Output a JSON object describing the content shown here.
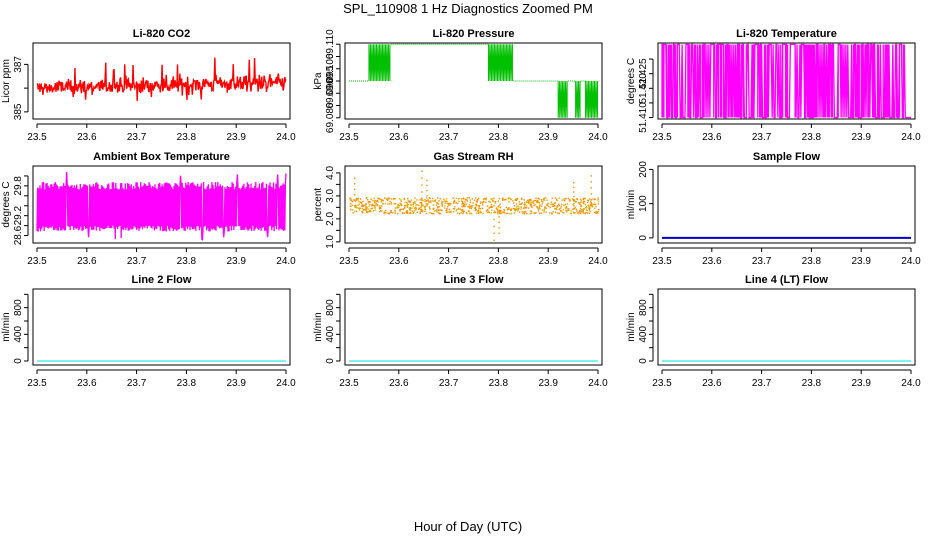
{
  "figure": {
    "title": "SPL_110908  1 Hz Diagnostics Zoomed PM",
    "xlabel": "Hour of Day (UTC)"
  },
  "chart_data": [
    {
      "id": "co2",
      "type": "line",
      "title": "Li-820 CO2",
      "ylabel": "Licor ppm",
      "xlim": [
        23.5,
        24.0
      ],
      "ylim": [
        384.7,
        387.9
      ],
      "xticks": [
        "23.5",
        "23.6",
        "23.7",
        "23.8",
        "23.9",
        "24.0"
      ],
      "yticks": [
        385,
        386,
        387
      ],
      "ytick_labels": [
        "385",
        "",
        "387"
      ],
      "color": "#ff0000",
      "series": [
        {
          "name": "CO2",
          "x_range": [
            23.5,
            24.0
          ],
          "pattern": "noise",
          "center": 386.0,
          "spread": 0.35,
          "range": [
            385.0,
            387.6
          ],
          "trend": 0.25
        }
      ]
    },
    {
      "id": "pressure",
      "type": "line",
      "title": "Li-820 Pressure",
      "ylabel": "kPa",
      "xlim": [
        23.5,
        24.0
      ],
      "ylim": [
        69.0795,
        69.1105
      ],
      "xticks": [
        "23.5",
        "23.6",
        "23.7",
        "23.8",
        "23.9",
        "24.0"
      ],
      "yticks": [
        69.08,
        69.085,
        69.09,
        69.095,
        69.1,
        69.105,
        69.11
      ],
      "ytick_labels": [
        "69.080",
        "",
        "69.090",
        "69.095",
        "69.100",
        "",
        "69.110"
      ],
      "color": "#00c000",
      "series": [
        {
          "name": "Pressure",
          "pattern": "steps",
          "segments": [
            {
              "x0": 23.5,
              "x1": 23.54,
              "mode": "flat",
              "y": 69.095
            },
            {
              "x0": 23.54,
              "x1": 23.585,
              "mode": "toggle",
              "ya": 69.095,
              "yb": 69.11
            },
            {
              "x0": 23.585,
              "x1": 23.78,
              "mode": "flat",
              "y": 69.11
            },
            {
              "x0": 23.78,
              "x1": 23.83,
              "mode": "toggle",
              "ya": 69.11,
              "yb": 69.095
            },
            {
              "x0": 23.83,
              "x1": 23.92,
              "mode": "flat",
              "y": 69.095
            },
            {
              "x0": 23.92,
              "x1": 23.94,
              "mode": "toggle",
              "ya": 69.095,
              "yb": 69.08
            },
            {
              "x0": 23.94,
              "x1": 23.955,
              "mode": "flat",
              "y": 69.095
            },
            {
              "x0": 23.955,
              "x1": 23.965,
              "mode": "toggle",
              "ya": 69.095,
              "yb": 69.08
            },
            {
              "x0": 23.965,
              "x1": 23.975,
              "mode": "flat",
              "y": 69.095
            },
            {
              "x0": 23.975,
              "x1": 24.0,
              "mode": "toggle",
              "ya": 69.095,
              "yb": 69.08
            }
          ]
        }
      ]
    },
    {
      "id": "licor_temp",
      "type": "line",
      "title": "Li-820 Temperature",
      "ylabel": "degrees C",
      "xlim": [
        23.5,
        24.0
      ],
      "ylim": [
        51.4095,
        51.4355
      ],
      "xticks": [
        "23.5",
        "23.6",
        "23.7",
        "23.8",
        "23.9",
        "24.0"
      ],
      "yticks": [
        51.41,
        51.415,
        51.42,
        51.425,
        51.43
      ],
      "ytick_labels": [
        "51.410",
        "",
        "51.420",
        "51.425",
        ""
      ],
      "color": "#ff00ff",
      "series": [
        {
          "name": "Temperature",
          "pattern": "twolevel",
          "ya": 51.435,
          "yb": 51.41,
          "end_x": 23.99,
          "density": 0.3
        }
      ]
    },
    {
      "id": "box_temp",
      "type": "line",
      "title": "Ambient Box Temperature",
      "ylabel": "degrees C",
      "xlim": [
        23.5,
        24.0
      ],
      "ylim": [
        28.45,
        30.0
      ],
      "xticks": [
        "23.5",
        "23.6",
        "23.7",
        "23.8",
        "23.9",
        "24.0"
      ],
      "yticks": [
        28.6,
        28.8,
        29.0,
        29.2,
        29.4,
        29.6,
        29.8
      ],
      "ytick_labels": [
        "28.6",
        "",
        "29.2",
        "",
        "",
        "29.8",
        ""
      ],
      "color": "#ff00ff",
      "series": [
        {
          "name": "Box Temp",
          "pattern": "band",
          "ylo": 28.68,
          "yhi": 29.68,
          "spikes_hi": 29.9,
          "spikes_lo": 28.5
        }
      ]
    },
    {
      "id": "rh",
      "type": "scatter",
      "title": "Gas Stream RH",
      "ylabel": "percent",
      "xlim": [
        23.5,
        24.0
      ],
      "ylim": [
        0.95,
        4.3
      ],
      "xticks": [
        "23.5",
        "23.6",
        "23.7",
        "23.8",
        "23.9",
        "24.0"
      ],
      "yticks": [
        1.0,
        1.5,
        2.0,
        2.5,
        3.0,
        3.5,
        4.0
      ],
      "ytick_labels": [
        "1.0",
        "",
        "2.0",
        "",
        "3.0",
        "",
        "4.0"
      ],
      "color": "#ff8c00",
      "color2": "#d4b400",
      "series": [
        {
          "name": "RH",
          "pattern": "dotband",
          "center": 2.6,
          "spread": 0.35,
          "outliers": [
            [
              23.51,
              3.8
            ],
            [
              23.645,
              4.1
            ],
            [
              23.655,
              3.7
            ],
            [
              23.79,
              1.1
            ],
            [
              23.8,
              1.4
            ],
            [
              23.95,
              3.6
            ],
            [
              23.985,
              3.9
            ]
          ]
        }
      ]
    },
    {
      "id": "sample_flow",
      "type": "line",
      "title": "Sample Flow",
      "ylabel": "ml/min",
      "xlim": [
        23.5,
        24.0
      ],
      "ylim": [
        -15,
        210
      ],
      "xticks": [
        "23.5",
        "23.6",
        "23.7",
        "23.8",
        "23.9",
        "24.0"
      ],
      "yticks": [
        0,
        100,
        200
      ],
      "ytick_labels": [
        "0",
        "100",
        "200"
      ],
      "color": "#0000cc",
      "series": [
        {
          "name": "Sample Flow",
          "pattern": "flat",
          "y": 0,
          "width": 2
        }
      ]
    },
    {
      "id": "line2",
      "type": "line",
      "title": "Line 2 Flow",
      "ylabel": "ml/min",
      "xlim": [
        23.5,
        24.0
      ],
      "ylim": [
        -60,
        1080
      ],
      "xticks": [
        "23.5",
        "23.6",
        "23.7",
        "23.8",
        "23.9",
        "24.0"
      ],
      "yticks": [
        0,
        200,
        400,
        600,
        800,
        1000
      ],
      "ytick_labels": [
        "0",
        "",
        "400",
        "",
        "800",
        ""
      ],
      "color": "#00e0e0",
      "series": [
        {
          "name": "Line 2 Flow",
          "pattern": "flat",
          "y": 0,
          "width": 1
        }
      ]
    },
    {
      "id": "line3",
      "type": "line",
      "title": "Line 3 Flow",
      "ylabel": "ml/min",
      "xlim": [
        23.5,
        24.0
      ],
      "ylim": [
        -60,
        1080
      ],
      "xticks": [
        "23.5",
        "23.6",
        "23.7",
        "23.8",
        "23.9",
        "24.0"
      ],
      "yticks": [
        0,
        200,
        400,
        600,
        800,
        1000
      ],
      "ytick_labels": [
        "0",
        "",
        "400",
        "",
        "800",
        ""
      ],
      "color": "#00e0e0",
      "series": [
        {
          "name": "Line 3 Flow",
          "pattern": "flat",
          "y": 0,
          "width": 1
        }
      ]
    },
    {
      "id": "line4",
      "type": "line",
      "title": "Line 4 (LT) Flow",
      "ylabel": "ml/min",
      "xlim": [
        23.5,
        24.0
      ],
      "ylim": [
        -60,
        1080
      ],
      "xticks": [
        "23.5",
        "23.6",
        "23.7",
        "23.8",
        "23.9",
        "24.0"
      ],
      "yticks": [
        0,
        200,
        400,
        600,
        800,
        1000
      ],
      "ytick_labels": [
        "0",
        "",
        "400",
        "",
        "800",
        ""
      ],
      "color": "#00e0e0",
      "series": [
        {
          "name": "Line 4 Flow",
          "pattern": "flat",
          "y": 0,
          "width": 1
        }
      ]
    }
  ]
}
